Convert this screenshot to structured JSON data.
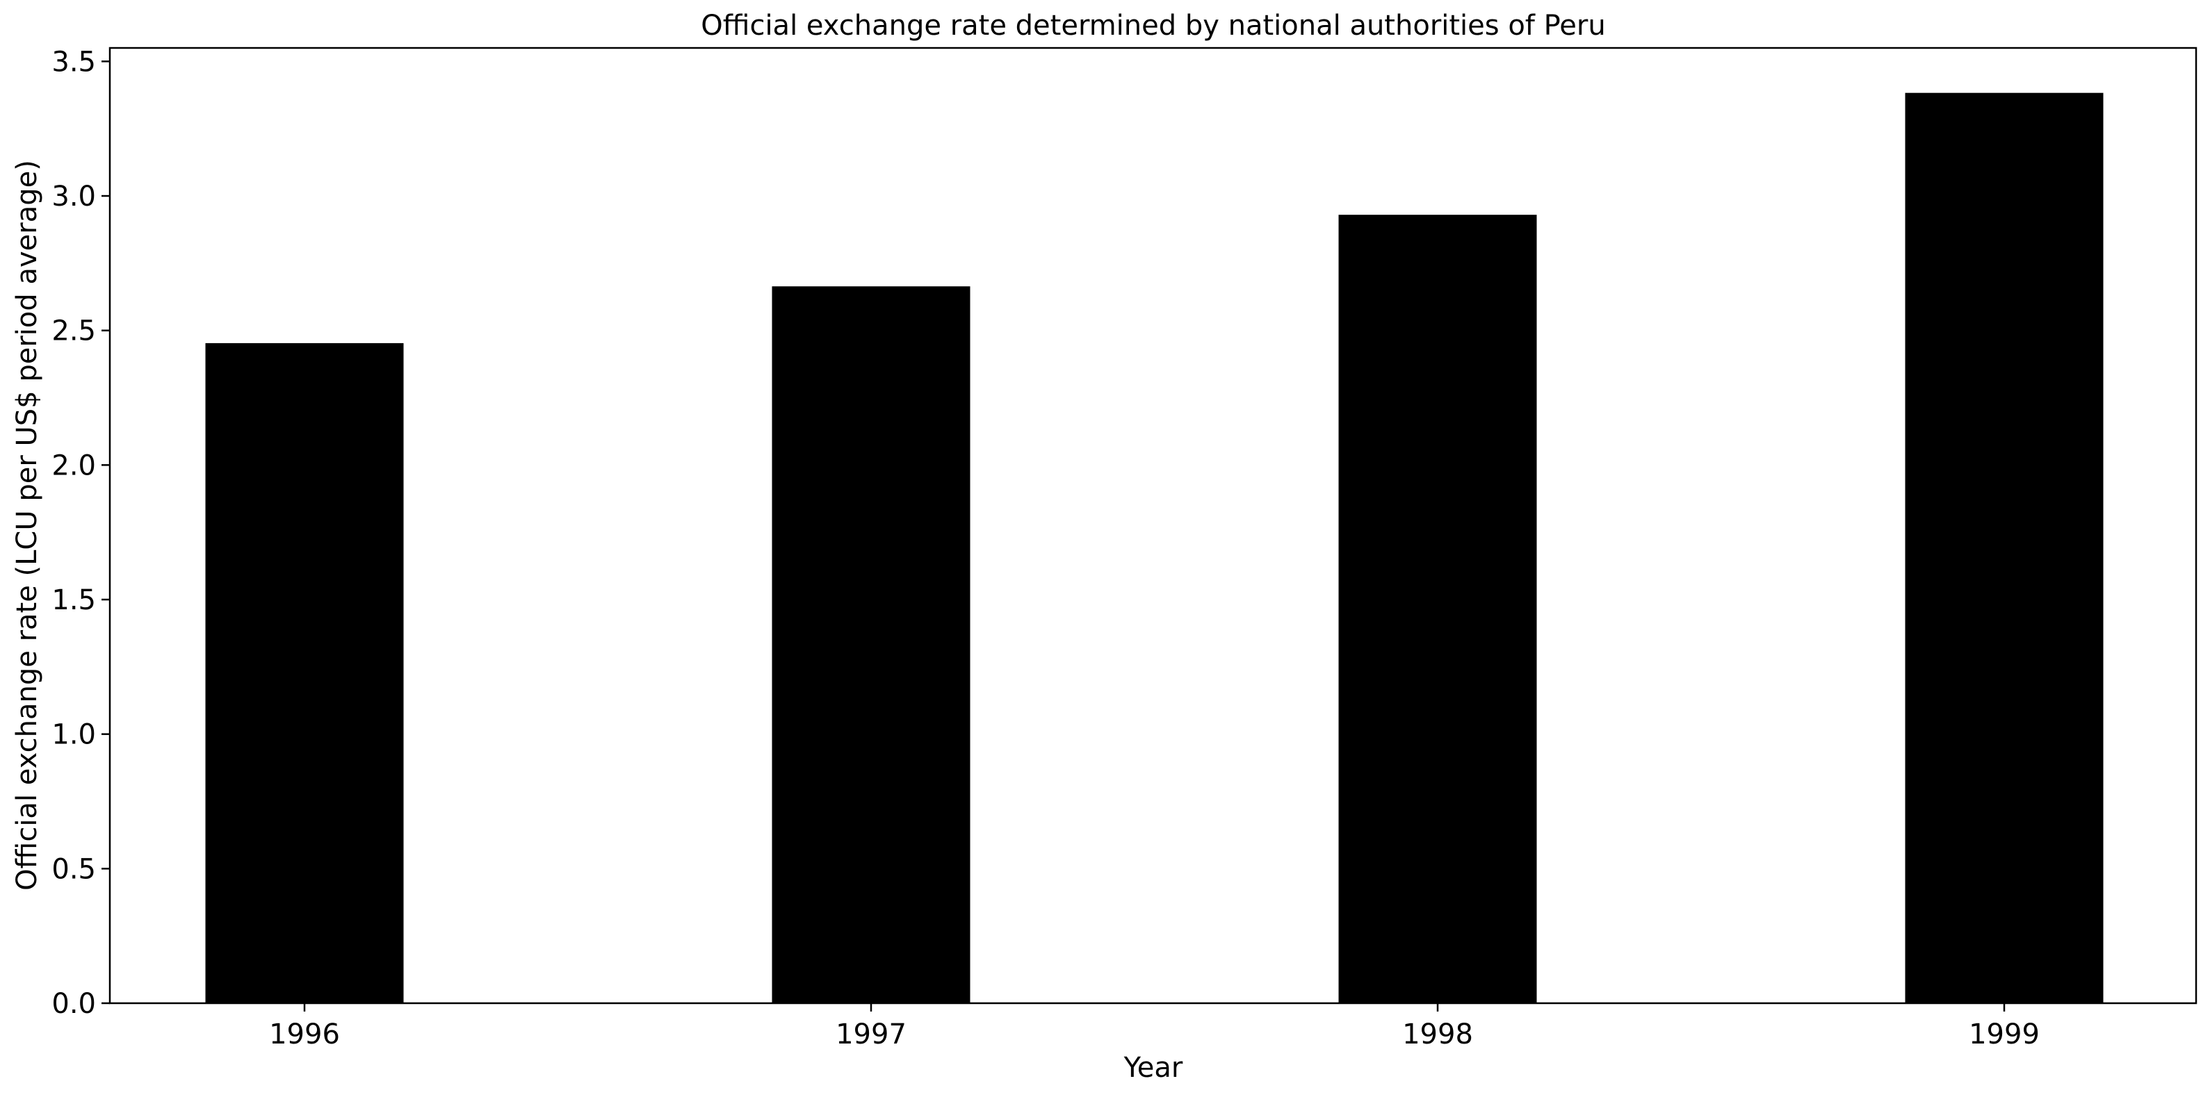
{
  "chart_data": {
    "type": "bar",
    "title": "Official exchange rate determined by national authorities of Peru",
    "xlabel": "Year",
    "ylabel": "Official exchange rate (LCU per US$ period average)",
    "categories": [
      "1996",
      "1997",
      "1998",
      "1999"
    ],
    "values": [
      2.453,
      2.664,
      2.93,
      3.383
    ],
    "ylim": [
      0,
      3.55
    ],
    "yticks": [
      0.0,
      0.5,
      1.0,
      1.5,
      2.0,
      2.5,
      3.0,
      3.5
    ],
    "ytick_labels": [
      "0.0",
      "0.5",
      "1.0",
      "1.5",
      "2.0",
      "2.5",
      "3.0",
      "3.5"
    ],
    "grid": false,
    "bar_color": "#000000"
  }
}
